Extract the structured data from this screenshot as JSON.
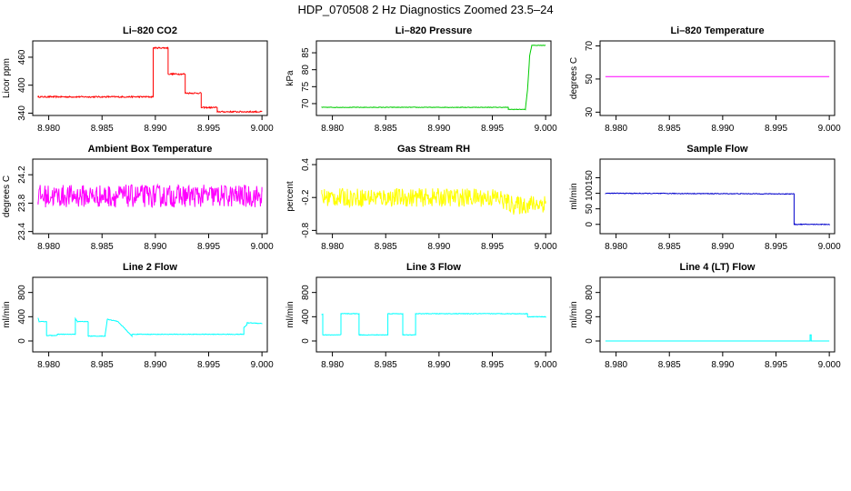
{
  "figure_title": "HDP_070508  2 Hz Diagnostics Zoomed 23.5–24",
  "chart_data": [
    {
      "type": "line",
      "title": "Li–820 CO2",
      "ylabel": "Licor ppm",
      "color": "#ff0000",
      "xlim": [
        8.9785,
        9.0005
      ],
      "ylim": [
        335,
        495
      ],
      "xticks": [
        8.98,
        8.985,
        8.99,
        8.995,
        9.0
      ],
      "xtick_labels": [
        "8.980",
        "8.985",
        "8.990",
        "8.995",
        "9.000"
      ],
      "yticks": [
        340,
        400,
        460
      ],
      "ytick_labels": [
        "340",
        "400",
        "460"
      ],
      "series": [
        {
          "name": "CO2",
          "noise": 1.5,
          "x": [
            8.979,
            8.9898,
            8.9898,
            8.9912,
            8.9912,
            8.9928,
            8.9928,
            8.9943,
            8.9943,
            8.9958,
            8.9958,
            9.0
          ],
          "y": [
            375,
            375,
            480,
            480,
            424,
            424,
            383,
            383,
            352,
            352,
            343,
            343
          ]
        }
      ]
    },
    {
      "type": "line",
      "title": "Li–820 Pressure",
      "ylabel": "kPa",
      "color": "#00cc00",
      "xlim": [
        8.9785,
        9.0005
      ],
      "ylim": [
        66.5,
        88.5
      ],
      "xticks": [
        8.98,
        8.985,
        8.99,
        8.995,
        9.0
      ],
      "xtick_labels": [
        "8.980",
        "8.985",
        "8.990",
        "8.995",
        "9.000"
      ],
      "yticks": [
        70,
        75,
        80,
        85
      ],
      "ytick_labels": [
        "70",
        "75",
        "80",
        "85"
      ],
      "series": [
        {
          "name": "Pressure",
          "noise": 0.08,
          "x": [
            8.979,
            8.9965,
            8.9965,
            8.9981,
            8.9983,
            8.9985,
            8.9987,
            9.0
          ],
          "y": [
            68.9,
            68.9,
            68.3,
            68.3,
            74,
            84,
            87.2,
            87.2
          ]
        }
      ]
    },
    {
      "type": "line",
      "title": "Li–820 Temperature",
      "ylabel": "degrees C",
      "color": "#ff00ff",
      "xlim": [
        8.9785,
        9.0005
      ],
      "ylim": [
        28,
        73
      ],
      "xticks": [
        8.98,
        8.985,
        8.99,
        8.995,
        9.0
      ],
      "xtick_labels": [
        "8.980",
        "8.985",
        "8.990",
        "8.995",
        "9.000"
      ],
      "yticks": [
        30,
        50,
        70
      ],
      "ytick_labels": [
        "30",
        "50",
        "70"
      ],
      "series": [
        {
          "name": "Temperature",
          "noise": 0,
          "x": [
            8.979,
            9.0
          ],
          "y": [
            51.5,
            51.5
          ]
        }
      ]
    },
    {
      "type": "line",
      "title": "Ambient Box Temperature",
      "ylabel": "degrees C",
      "color": "#ff00ff",
      "xlim": [
        8.9785,
        9.0005
      ],
      "ylim": [
        23.37,
        24.42
      ],
      "xticks": [
        8.98,
        8.985,
        8.99,
        8.995,
        9.0
      ],
      "xtick_labels": [
        "8.980",
        "8.985",
        "8.990",
        "8.995",
        "9.000"
      ],
      "yticks": [
        23.4,
        23.8,
        24.2
      ],
      "ytick_labels": [
        "23.4",
        "23.8",
        "24.2"
      ],
      "series": [
        {
          "name": "Box Temperature",
          "noise": 0.16,
          "x": [
            8.979,
            9.0
          ],
          "y": [
            23.9,
            23.9
          ]
        }
      ]
    },
    {
      "type": "line",
      "title": "Gas Stream RH",
      "ylabel": "percent",
      "color": "#ffff00",
      "xlim": [
        8.9785,
        9.0005
      ],
      "ylim": [
        -0.86,
        0.5
      ],
      "xticks": [
        8.98,
        8.985,
        8.99,
        8.995,
        9.0
      ],
      "xtick_labels": [
        "8.980",
        "8.985",
        "8.990",
        "8.995",
        "9.000"
      ],
      "yticks": [
        -0.8,
        -0.2,
        0.4
      ],
      "ytick_labels": [
        "-0.8",
        "-0.2",
        "0.4"
      ],
      "series": [
        {
          "name": "RH",
          "noise": 0.17,
          "x": [
            8.979,
            8.9955,
            8.997,
            9.0
          ],
          "y": [
            -0.2,
            -0.2,
            -0.35,
            -0.3
          ]
        }
      ]
    },
    {
      "type": "line",
      "title": "Sample Flow",
      "ylabel": "ml/min",
      "color": "#0000cc",
      "xlim": [
        8.9785,
        9.0005
      ],
      "ylim": [
        -30,
        210
      ],
      "xticks": [
        8.98,
        8.985,
        8.99,
        8.995,
        9.0
      ],
      "xtick_labels": [
        "8.980",
        "8.985",
        "8.990",
        "8.995",
        "9.000"
      ],
      "yticks": [
        0,
        50,
        100,
        150
      ],
      "ytick_labels": [
        "0",
        "50",
        "100",
        "150"
      ],
      "series": [
        {
          "name": "Sample Flow",
          "noise": 1.2,
          "x": [
            8.979,
            8.9967,
            8.9967,
            9.0
          ],
          "y": [
            100,
            98,
            0,
            0
          ]
        }
      ]
    },
    {
      "type": "line",
      "title": "Line 2 Flow",
      "ylabel": "ml/min",
      "color": "#00ffff",
      "xlim": [
        8.9785,
        9.0005
      ],
      "ylim": [
        -180,
        1050
      ],
      "xticks": [
        8.98,
        8.985,
        8.99,
        8.995,
        9.0
      ],
      "xtick_labels": [
        "8.980",
        "8.985",
        "8.990",
        "8.995",
        "9.000"
      ],
      "yticks": [
        0,
        400,
        800
      ],
      "ytick_labels": [
        "0",
        "400",
        "800"
      ],
      "series": [
        {
          "name": "Line 2",
          "noise": 5,
          "x": [
            8.979,
            8.9791,
            8.9798,
            8.9798,
            8.9808,
            8.9808,
            8.9825,
            8.9825,
            8.9827,
            8.9837,
            8.9837,
            8.9853,
            8.9853,
            8.9855,
            8.9865,
            8.9865,
            8.9878,
            8.9878,
            8.9983,
            8.9983,
            8.9986,
            8.9986,
            9.0
          ],
          "y": [
            380,
            320,
            320,
            90,
            90,
            110,
            110,
            370,
            320,
            320,
            80,
            80,
            110,
            360,
            320,
            320,
            80,
            110,
            110,
            220,
            270,
            300,
            290
          ]
        }
      ]
    },
    {
      "type": "line",
      "title": "Line 3 Flow",
      "ylabel": "ml/min",
      "color": "#00ffff",
      "xlim": [
        8.9785,
        9.0005
      ],
      "ylim": [
        -180,
        1050
      ],
      "xticks": [
        8.98,
        8.985,
        8.99,
        8.995,
        9.0
      ],
      "xtick_labels": [
        "8.980",
        "8.985",
        "8.990",
        "8.995",
        "9.000"
      ],
      "yticks": [
        0,
        400,
        800
      ],
      "ytick_labels": [
        "0",
        "400",
        "800"
      ],
      "series": [
        {
          "name": "Line 3",
          "noise": 5,
          "x": [
            8.979,
            8.9791,
            8.9791,
            8.9799,
            8.9799,
            8.9808,
            8.9808,
            8.9825,
            8.9825,
            8.9836,
            8.9836,
            8.9852,
            8.9852,
            8.9866,
            8.9866,
            8.9878,
            8.9878,
            8.9983,
            8.9983,
            9.0
          ],
          "y": [
            440,
            440,
            100,
            100,
            100,
            100,
            450,
            450,
            100,
            100,
            100,
            100,
            450,
            450,
            100,
            100,
            450,
            450,
            400,
            400
          ]
        }
      ]
    },
    {
      "type": "line",
      "title": "Line 4 (LT) Flow",
      "ylabel": "ml/min",
      "color": "#00ffff",
      "xlim": [
        8.9785,
        9.0005
      ],
      "ylim": [
        -180,
        1050
      ],
      "xticks": [
        8.98,
        8.985,
        8.99,
        8.995,
        9.0
      ],
      "xtick_labels": [
        "8.980",
        "8.985",
        "8.990",
        "8.995",
        "9.000"
      ],
      "yticks": [
        0,
        400,
        800
      ],
      "ytick_labels": [
        "0",
        "400",
        "800"
      ],
      "series": [
        {
          "name": "Line 4",
          "noise": 0,
          "x": [
            8.979,
            8.9982,
            8.9982,
            8.9983,
            8.9983,
            9.0
          ],
          "y": [
            0,
            0,
            100,
            100,
            0,
            0
          ]
        }
      ]
    }
  ]
}
